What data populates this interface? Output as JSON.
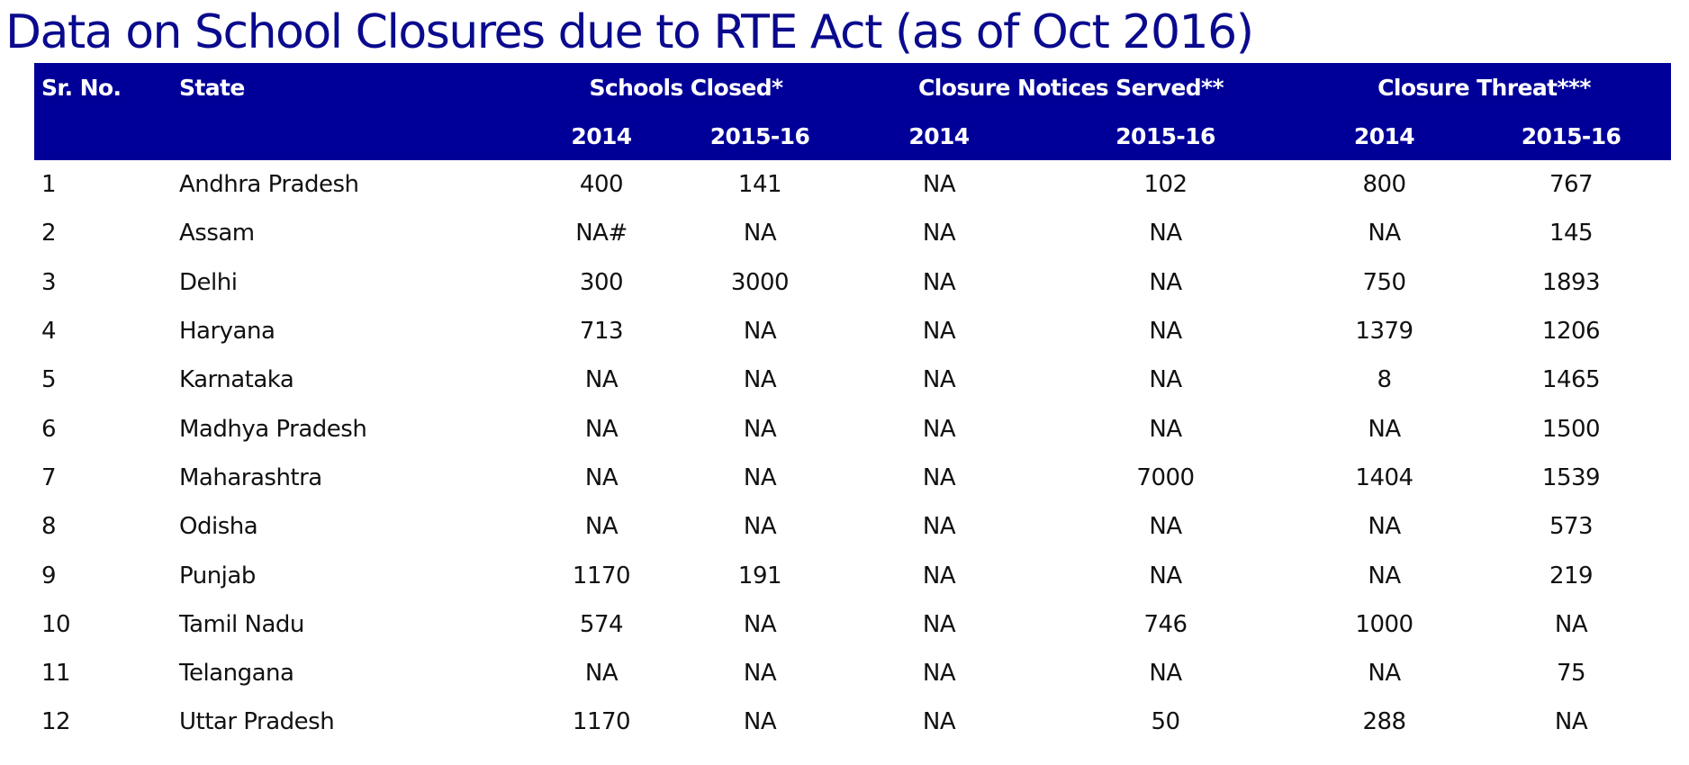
{
  "title": "Data on School Closures due to RTE Act (as of Oct 2016)",
  "colors": {
    "title": "#0a0a8e",
    "header_bg": "#000099",
    "header_text": "#ffffff",
    "body_text": "#111111"
  },
  "table": {
    "headers": {
      "sr_no": "Sr. No.",
      "state": "State",
      "groups": [
        "Schools Closed*",
        "Closure Notices Served**",
        "Closure Threat***"
      ],
      "years": [
        "2014",
        "2015-16",
        "2014",
        "2015-16",
        "2014",
        "2015-16"
      ]
    },
    "rows": [
      [
        "1",
        "Andhra Pradesh",
        "400",
        "141",
        "NA",
        "102",
        "800",
        "767"
      ],
      [
        "2",
        "Assam",
        "NA#",
        "NA",
        "NA",
        "NA",
        "NA",
        "145"
      ],
      [
        "3",
        "Delhi",
        "300",
        "3000",
        "NA",
        "NA",
        "750",
        "1893"
      ],
      [
        "4",
        "Haryana",
        "713",
        "NA",
        "NA",
        "NA",
        "1379",
        "1206"
      ],
      [
        "5",
        "Karnataka",
        "NA",
        "NA",
        "NA",
        "NA",
        "8",
        "1465"
      ],
      [
        "6",
        "Madhya Pradesh",
        "NA",
        "NA",
        "NA",
        "NA",
        "NA",
        "1500"
      ],
      [
        "7",
        "Maharashtra",
        "NA",
        "NA",
        "NA",
        "7000",
        "1404",
        "1539"
      ],
      [
        "8",
        "Odisha",
        "NA",
        "NA",
        "NA",
        "NA",
        "NA",
        "573"
      ],
      [
        "9",
        "Punjab",
        "1170",
        "191",
        "NA",
        "NA",
        "NA",
        "219"
      ],
      [
        "10",
        "Tamil Nadu",
        "574",
        "NA",
        "NA",
        "746",
        "1000",
        "NA"
      ],
      [
        "11",
        "Telangana",
        "NA",
        "NA",
        "NA",
        "NA",
        "NA",
        "75"
      ],
      [
        "12",
        "Uttar Pradesh",
        "1170",
        "NA",
        "NA",
        "50",
        "288",
        "NA"
      ]
    ]
  }
}
